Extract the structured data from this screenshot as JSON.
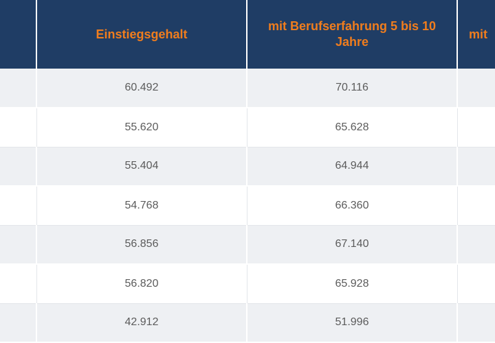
{
  "table": {
    "headers": [
      "",
      "Einstiegsgehalt",
      "mit Berufserfahrung  5 bis 10 Jahre",
      "mit"
    ],
    "rows": [
      [
        "",
        "60.492",
        "70.116",
        ""
      ],
      [
        "",
        "55.620",
        "65.628",
        ""
      ],
      [
        "",
        "55.404",
        "64.944",
        ""
      ],
      [
        "",
        "54.768",
        "66.360",
        ""
      ],
      [
        "",
        "56.856",
        "67.140",
        ""
      ],
      [
        "",
        "56.820",
        "65.928",
        ""
      ],
      [
        "",
        "42.912",
        "51.996",
        ""
      ]
    ]
  },
  "colors": {
    "header_background": "#1f3d65",
    "header_text": "#f07d1d",
    "row_shaded": "#eef0f3",
    "row_plain": "#ffffff",
    "cell_text": "#5b5b5b"
  }
}
